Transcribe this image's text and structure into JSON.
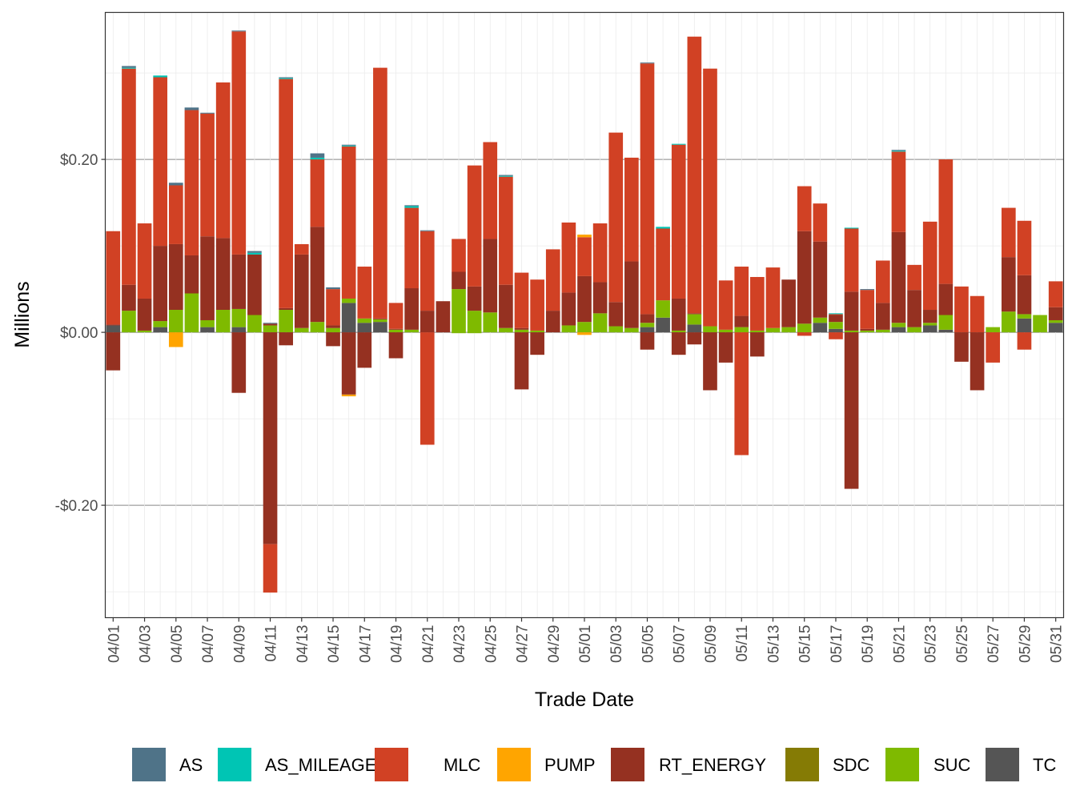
{
  "chart_data": {
    "type": "bar",
    "stacked": true,
    "xlabel": "Trade Date",
    "ylabel": "Millions",
    "ylim": [
      -0.33,
      0.37
    ],
    "yticks": [
      -0.2,
      0.0,
      0.2
    ],
    "ytick_labels": [
      "-$0.20",
      "$0.00",
      "$0.20"
    ],
    "legend_position": "bottom",
    "grid": true,
    "categories": [
      "04/01",
      "04/02",
      "04/03",
      "04/04",
      "04/05",
      "04/06",
      "04/07",
      "04/08",
      "04/09",
      "04/10",
      "04/11",
      "04/12",
      "04/13",
      "04/14",
      "04/15",
      "04/16",
      "04/17",
      "04/18",
      "04/19",
      "04/20",
      "04/21",
      "04/22",
      "04/23",
      "04/24",
      "04/25",
      "04/26",
      "04/27",
      "04/28",
      "04/29",
      "04/30",
      "05/01",
      "05/02",
      "05/03",
      "05/04",
      "05/05",
      "05/06",
      "05/07",
      "05/08",
      "05/09",
      "05/10",
      "05/11",
      "05/12",
      "05/13",
      "05/14",
      "05/15",
      "05/16",
      "05/17",
      "05/18",
      "05/19",
      "05/20",
      "05/21",
      "05/22",
      "05/23",
      "05/24",
      "05/25",
      "05/26",
      "05/27",
      "05/28",
      "05/29",
      "05/30",
      "05/31"
    ],
    "xtick_labels": [
      "04/01",
      "04/03",
      "04/05",
      "04/07",
      "04/09",
      "04/11",
      "04/13",
      "04/15",
      "04/17",
      "04/19",
      "04/21",
      "04/23",
      "04/25",
      "04/27",
      "04/29",
      "05/01",
      "05/03",
      "05/05",
      "05/07",
      "05/09",
      "05/11",
      "05/13",
      "05/15",
      "05/17",
      "05/19",
      "05/21",
      "05/23",
      "05/25",
      "05/27",
      "05/29",
      "05/31"
    ],
    "series": [
      {
        "name": "TC",
        "color": "#555555",
        "values": [
          0.008,
          0,
          0,
          0.006,
          0,
          0,
          0.006,
          0,
          0.006,
          0,
          0,
          0,
          0,
          0,
          0,
          0.034,
          0.011,
          0.012,
          0,
          0,
          0,
          0,
          0,
          0,
          0,
          0,
          0,
          0,
          0,
          0,
          0,
          0,
          0,
          0,
          0.006,
          0.017,
          0,
          0.009,
          0,
          0,
          0,
          0,
          0,
          0,
          0,
          0.011,
          0.004,
          0,
          0,
          0,
          0.006,
          0,
          0.008,
          0.003,
          0,
          0,
          0,
          0,
          0.016,
          0,
          0.011
        ]
      },
      {
        "name": "SDC",
        "color": "#857B05",
        "values": [
          0,
          0,
          0,
          0,
          0,
          0,
          0,
          0,
          0,
          0,
          0,
          0,
          0,
          0,
          0,
          0,
          0,
          0,
          0,
          0,
          0,
          0,
          0,
          0,
          0,
          0,
          0,
          0,
          0,
          0,
          0,
          0,
          0,
          0,
          0,
          0,
          0,
          0,
          0,
          0,
          0,
          0,
          0,
          0,
          0,
          0,
          0,
          0,
          0,
          0,
          0,
          0,
          0,
          0,
          0,
          0,
          0,
          0,
          0,
          0,
          0
        ]
      },
      {
        "name": "SUC",
        "color": "#7FBA00",
        "values": [
          0,
          0.025,
          0.002,
          0.007,
          0.026,
          0.045,
          0.008,
          0.026,
          0.021,
          0.02,
          0.008,
          0.026,
          0.005,
          0.012,
          0.005,
          0.005,
          0.005,
          0.003,
          0.003,
          0.003,
          0,
          0,
          0.05,
          0.025,
          0.023,
          0.005,
          0.003,
          0.002,
          0,
          0.008,
          0.012,
          0.022,
          0.007,
          0.005,
          0.005,
          0.02,
          0.002,
          0.012,
          0.007,
          0.003,
          0.006,
          0.002,
          0.005,
          0.006,
          0.01,
          0.006,
          0.008,
          0.002,
          0.002,
          0.003,
          0.005,
          0.006,
          0.003,
          0.017,
          0,
          0,
          0.006,
          0.024,
          0.005,
          0.02,
          0.003
        ]
      },
      {
        "name": "RT_ENERGY",
        "color": "#953121",
        "values": [
          0.001,
          0.03,
          0.037,
          0.087,
          0.076,
          0.044,
          0.097,
          0.083,
          0.063,
          0.07,
          0.002,
          0.002,
          0.085,
          0.11,
          0.003,
          0,
          0,
          0.001,
          0.001,
          0.048,
          0.025,
          0.036,
          0.02,
          0.028,
          0.085,
          0.05,
          0.002,
          0,
          0.025,
          0.038,
          0.053,
          0.036,
          0.028,
          0.077,
          0.01,
          0,
          0.037,
          0.001,
          0,
          0,
          0.013,
          0,
          0,
          0.055,
          0.107,
          0.088,
          0.008,
          0.045,
          0.002,
          0.031,
          0.105,
          0.043,
          0.015,
          0.036,
          0,
          0,
          0,
          0.063,
          0.045,
          0,
          0.015
        ]
      },
      {
        "name": "MLC",
        "color": "#D14124",
        "values": [
          0.108,
          0.25,
          0.087,
          0.195,
          0.068,
          0.168,
          0.142,
          0.18,
          0.258,
          0,
          0,
          0.265,
          0.012,
          0.078,
          0.042,
          0.176,
          0.06,
          0.29,
          0.03,
          0.093,
          0.092,
          0,
          0.038,
          0.14,
          0.112,
          0.125,
          0.064,
          0.059,
          0.071,
          0.081,
          0.045,
          0.068,
          0.196,
          0.12,
          0.29,
          0.083,
          0.178,
          0.32,
          0.298,
          0.057,
          0.057,
          0.062,
          0.07,
          0,
          0.052,
          0.044,
          0.001,
          0.073,
          0.045,
          0.049,
          0.093,
          0.029,
          0.102,
          0.144,
          0.053,
          0.042,
          0,
          0.057,
          0.063,
          0,
          0.03
        ]
      },
      {
        "name": "PUMP",
        "color": "#FFA500",
        "values": [
          0,
          0,
          0,
          0,
          0,
          0,
          0,
          0,
          0,
          0,
          0,
          0,
          0,
          0,
          0,
          0,
          0,
          0,
          0,
          0,
          0,
          0,
          0,
          0,
          0,
          0,
          0,
          0,
          0,
          0,
          0.003,
          0,
          0,
          0,
          0,
          0,
          0,
          0,
          0,
          0,
          0,
          0,
          0,
          0,
          0,
          0,
          0,
          0,
          0,
          0,
          0,
          0,
          0,
          0,
          0,
          0,
          0,
          0,
          0,
          0,
          0
        ]
      },
      {
        "name": "AS_MILEAGE",
        "color": "#00C5B4",
        "values": [
          0,
          0.001,
          0,
          0.002,
          0,
          0,
          0,
          0,
          0,
          0.002,
          0,
          0.001,
          0,
          0.002,
          0,
          0.001,
          0,
          0,
          0,
          0.002,
          0,
          0,
          0,
          0,
          0,
          0.001,
          0,
          0,
          0,
          0,
          0,
          0,
          0,
          0,
          0,
          0.002,
          0.001,
          0,
          0,
          0,
          0,
          0,
          0,
          0,
          0,
          0,
          0.001,
          0.001,
          0,
          0,
          0.001,
          0,
          0,
          0,
          0,
          0,
          0,
          0,
          0,
          0,
          0
        ]
      },
      {
        "name": "AS",
        "color": "#4F7388",
        "values": [
          0,
          0.002,
          0,
          0,
          0.003,
          0.003,
          0.001,
          0,
          0.001,
          0.002,
          0.001,
          0.001,
          0,
          0.005,
          0.002,
          0.001,
          0,
          0,
          0,
          0.001,
          0.001,
          0,
          0,
          0,
          0,
          0.001,
          0,
          0,
          0,
          0,
          0,
          0,
          0,
          0,
          0.001,
          0,
          0,
          0,
          0,
          0,
          0,
          0,
          0,
          0,
          0,
          0,
          0,
          0,
          0.001,
          0,
          0.001,
          0,
          0,
          0,
          0,
          0,
          0,
          0,
          0,
          0,
          0
        ]
      },
      {
        "name": "TC",
        "color": "#555555",
        "negative": true,
        "values": [
          0,
          0,
          0,
          0,
          0,
          0,
          0,
          0,
          0,
          0,
          0,
          0,
          0,
          0,
          0,
          0,
          0,
          0,
          0,
          0,
          0,
          0,
          0,
          0,
          0,
          0,
          0,
          0,
          0,
          0,
          0,
          0,
          0,
          0,
          0,
          0,
          0,
          0,
          0,
          0,
          0,
          0,
          0,
          0,
          0,
          0,
          0,
          0,
          0,
          0,
          0,
          0,
          0,
          0,
          0,
          0,
          0,
          0,
          0,
          0,
          0
        ]
      },
      {
        "name": "SUC",
        "color": "#7FBA00",
        "negative": true,
        "values": [
          0,
          0,
          0,
          0,
          0,
          0,
          0,
          0,
          0,
          0,
          0,
          0,
          0,
          0,
          0,
          0,
          0,
          0,
          0,
          0,
          0,
          0,
          -0.001,
          -0.001,
          0,
          0,
          0,
          0,
          0,
          0,
          0,
          0,
          0,
          0,
          0,
          0,
          0,
          0,
          0,
          0,
          0,
          0,
          0,
          0,
          0,
          0,
          0,
          0,
          0,
          0,
          0,
          0,
          0,
          0,
          0,
          0,
          0,
          0,
          0,
          0,
          0
        ]
      },
      {
        "name": "RT_ENERGY",
        "color": "#953121",
        "negative": true,
        "values": [
          -0.044,
          0,
          0,
          0,
          0,
          0,
          0,
          0,
          -0.07,
          0,
          -0.245,
          -0.015,
          0,
          0,
          -0.016,
          -0.072,
          -0.041,
          0,
          -0.03,
          0,
          0,
          0,
          0,
          0,
          0,
          0,
          -0.066,
          -0.026,
          0,
          0,
          0,
          0,
          0,
          0,
          -0.02,
          0,
          -0.026,
          -0.014,
          -0.067,
          -0.035,
          0,
          -0.028,
          0,
          0,
          0,
          0,
          0,
          -0.181,
          0,
          0,
          0,
          0,
          0,
          0,
          -0.034,
          -0.067,
          0,
          0,
          0,
          0,
          0
        ]
      },
      {
        "name": "MLC",
        "color": "#D14124",
        "negative": true,
        "values": [
          0,
          0,
          0,
          0,
          0,
          0,
          0,
          0,
          0,
          0,
          -0.056,
          0,
          0,
          0,
          0,
          0,
          0,
          0,
          0,
          0,
          -0.13,
          0,
          0,
          0,
          0,
          0,
          0,
          0,
          0,
          0,
          0,
          0,
          0,
          0,
          0,
          0,
          0,
          0,
          0,
          0,
          -0.142,
          0,
          0,
          0,
          -0.004,
          0,
          -0.008,
          0,
          0,
          0,
          0,
          0,
          0,
          0,
          0,
          0,
          -0.035,
          0,
          -0.02,
          0,
          0
        ]
      },
      {
        "name": "PUMP",
        "color": "#FFA500",
        "negative": true,
        "values": [
          0,
          0,
          0,
          0,
          -0.017,
          0,
          0,
          0,
          0,
          0,
          0,
          0,
          0,
          0,
          0,
          -0.002,
          0,
          0,
          0,
          0,
          0,
          0,
          0,
          0,
          0,
          0,
          0,
          0,
          0,
          0,
          -0.003,
          0,
          0,
          0,
          0,
          0,
          0,
          0,
          0,
          0,
          0,
          0,
          0,
          0,
          0,
          0,
          0,
          0,
          0,
          0,
          0,
          0,
          0,
          0,
          0,
          0,
          0,
          0,
          0,
          0,
          0
        ]
      }
    ],
    "legend": [
      {
        "name": "AS",
        "color": "#4F7388"
      },
      {
        "name": "AS_MILEAGE",
        "color": "#00C5B4"
      },
      {
        "name": "MLC",
        "color": "#D14124"
      },
      {
        "name": "PUMP",
        "color": "#FFA500"
      },
      {
        "name": "RT_ENERGY",
        "color": "#953121"
      },
      {
        "name": "SDC",
        "color": "#857B05"
      },
      {
        "name": "SUC",
        "color": "#7FBA00"
      },
      {
        "name": "TC",
        "color": "#555555"
      }
    ]
  }
}
